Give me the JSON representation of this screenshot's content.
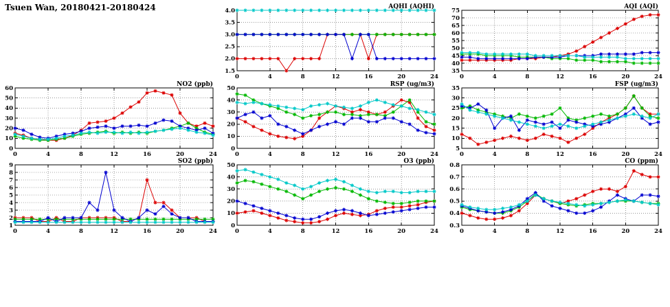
{
  "title": "Tsuen Wan, 20180421-20180424",
  "colors": {
    "red": "#dc0000",
    "blue": "#0000d0",
    "green": "#00b800",
    "cyan": "#00c8c8"
  },
  "chart_data": [
    {
      "key": "aqhi",
      "type": "line",
      "title": "AQHI (AQHI)",
      "xlim": [
        0,
        24
      ],
      "x_step": 1,
      "xticks": [
        0,
        4,
        8,
        12,
        16,
        20,
        24
      ],
      "ylim": [
        1.5,
        4.0
      ],
      "yticks": [
        1.5,
        2.0,
        2.5,
        3.0,
        3.5,
        4.0
      ],
      "ydec": 1,
      "series": [
        {
          "color": "red",
          "values": [
            2,
            2,
            2,
            2,
            2,
            2,
            1.5,
            2,
            2,
            2,
            2,
            3,
            3,
            3,
            3,
            3,
            2,
            3,
            3,
            3,
            3,
            3,
            3,
            3,
            3
          ]
        },
        {
          "color": "green",
          "values": [
            3,
            3,
            3,
            3,
            3,
            3,
            3,
            3,
            3,
            3,
            3,
            3,
            3,
            3,
            3,
            3,
            3,
            3,
            3,
            3,
            3,
            3,
            3,
            3,
            3
          ]
        },
        {
          "color": "blue",
          "values": [
            3,
            3,
            3,
            3,
            3,
            3,
            3,
            3,
            3,
            3,
            3,
            3,
            3,
            3,
            2,
            3,
            3,
            2,
            2,
            2,
            2,
            2,
            2,
            2,
            2
          ]
        },
        {
          "color": "cyan",
          "values": [
            4,
            4,
            4,
            4,
            4,
            4,
            4,
            4,
            4,
            4,
            4,
            4,
            4,
            4,
            4,
            4,
            4,
            4,
            4,
            4,
            4,
            4,
            4,
            4,
            4
          ]
        }
      ]
    },
    {
      "key": "aqi",
      "type": "line",
      "title": "AQI (AQI)",
      "xlim": [
        0,
        24
      ],
      "x_step": 1,
      "xticks": [
        0,
        4,
        8,
        12,
        16,
        20,
        24
      ],
      "ylim": [
        35,
        75
      ],
      "yticks": [
        35,
        40,
        45,
        50,
        55,
        60,
        65,
        70,
        75
      ],
      "ydec": 0,
      "series": [
        {
          "color": "red",
          "values": [
            42,
            42,
            42,
            42,
            42,
            42,
            42,
            43,
            43,
            43,
            44,
            44,
            45,
            46,
            48,
            51,
            54,
            57,
            60,
            63,
            66,
            69,
            71,
            72,
            72
          ]
        },
        {
          "color": "green",
          "values": [
            46,
            46,
            46,
            45,
            45,
            45,
            45,
            44,
            44,
            44,
            44,
            43,
            43,
            43,
            42,
            42,
            42,
            41,
            41,
            41,
            41,
            40,
            40,
            40,
            40
          ]
        },
        {
          "color": "blue",
          "values": [
            44,
            44,
            43,
            43,
            43,
            43,
            43,
            43,
            43,
            44,
            44,
            44,
            44,
            45,
            45,
            45,
            45,
            46,
            46,
            46,
            46,
            46,
            47,
            47,
            47
          ]
        },
        {
          "color": "cyan",
          "values": [
            47,
            47,
            47,
            46,
            46,
            46,
            46,
            46,
            46,
            45,
            45,
            45,
            45,
            45,
            45,
            44,
            44,
            44,
            44,
            44,
            43,
            43,
            43,
            43,
            43
          ]
        }
      ]
    },
    {
      "key": "no2",
      "type": "line",
      "title": "NO2 (ppb)",
      "xlim": [
        0,
        24
      ],
      "x_step": 1,
      "xticks": [
        0,
        4,
        8,
        12,
        16,
        20,
        24
      ],
      "ylim": [
        0,
        60
      ],
      "yticks": [
        0,
        10,
        20,
        30,
        40,
        50,
        60
      ],
      "ydec": 0,
      "series": [
        {
          "color": "red",
          "values": [
            15,
            13,
            10,
            9,
            8,
            8,
            10,
            13,
            18,
            25,
            26,
            27,
            30,
            35,
            41,
            46,
            55,
            57,
            55,
            53,
            35,
            25,
            22,
            25,
            22
          ]
        },
        {
          "color": "green",
          "values": [
            12,
            10,
            9,
            8,
            8,
            9,
            10,
            12,
            14,
            15,
            16,
            17,
            15,
            16,
            15,
            16,
            15,
            17,
            18,
            20,
            22,
            25,
            20,
            16,
            14
          ]
        },
        {
          "color": "blue",
          "values": [
            20,
            18,
            14,
            11,
            10,
            12,
            14,
            15,
            17,
            20,
            21,
            22,
            20,
            22,
            22,
            23,
            22,
            25,
            28,
            27,
            22,
            20,
            18,
            20,
            15
          ]
        },
        {
          "color": "cyan",
          "values": [
            14,
            12,
            10,
            9,
            9,
            10,
            12,
            13,
            15,
            16,
            15,
            16,
            16,
            15,
            16,
            15,
            16,
            17,
            18,
            19,
            20,
            18,
            16,
            15,
            13
          ]
        }
      ]
    },
    {
      "key": "rsp",
      "type": "line",
      "title": "RSP (ug/m3)",
      "xlim": [
        0,
        24
      ],
      "x_step": 1,
      "xticks": [
        0,
        4,
        8,
        12,
        16,
        20,
        24
      ],
      "ylim": [
        0,
        50
      ],
      "yticks": [
        0,
        10,
        20,
        30,
        40,
        50
      ],
      "ydec": 0,
      "series": [
        {
          "color": "red",
          "values": [
            25,
            22,
            18,
            15,
            12,
            10,
            9,
            8,
            10,
            15,
            25,
            30,
            35,
            33,
            30,
            32,
            30,
            28,
            30,
            35,
            40,
            38,
            25,
            18,
            15
          ]
        },
        {
          "color": "green",
          "values": [
            45,
            44,
            40,
            37,
            35,
            33,
            30,
            28,
            25,
            27,
            28,
            30,
            30,
            28,
            28,
            27,
            28,
            28,
            27,
            30,
            35,
            40,
            30,
            22,
            20
          ]
        },
        {
          "color": "blue",
          "values": [
            25,
            28,
            30,
            25,
            27,
            20,
            18,
            15,
            12,
            15,
            18,
            20,
            22,
            20,
            25,
            25,
            22,
            22,
            25,
            25,
            22,
            20,
            15,
            13,
            12
          ]
        },
        {
          "color": "cyan",
          "values": [
            38,
            37,
            38,
            37,
            36,
            35,
            34,
            33,
            32,
            35,
            36,
            37,
            35,
            34,
            33,
            35,
            38,
            40,
            38,
            36,
            35,
            33,
            32,
            30,
            28
          ]
        }
      ]
    },
    {
      "key": "fsp",
      "type": "line",
      "title": "FSP (ug/m3)",
      "xlim": [
        0,
        24
      ],
      "x_step": 1,
      "xticks": [
        0,
        4,
        8,
        12,
        16,
        20,
        24
      ],
      "ylim": [
        5,
        35
      ],
      "yticks": [
        5,
        10,
        15,
        20,
        25,
        30,
        35
      ],
      "ydec": 0,
      "series": [
        {
          "color": "red",
          "values": [
            12,
            10,
            7,
            8,
            9,
            10,
            11,
            10,
            9,
            10,
            12,
            11,
            10,
            8,
            10,
            12,
            15,
            18,
            20,
            22,
            25,
            31,
            25,
            22,
            22
          ]
        },
        {
          "color": "green",
          "values": [
            25,
            26,
            24,
            23,
            22,
            21,
            20,
            22,
            21,
            20,
            21,
            22,
            25,
            20,
            19,
            20,
            21,
            22,
            21,
            22,
            25,
            31,
            25,
            21,
            20
          ]
        },
        {
          "color": "blue",
          "values": [
            26,
            25,
            27,
            24,
            15,
            20,
            21,
            14,
            19,
            18,
            17,
            18,
            15,
            19,
            18,
            17,
            16,
            17,
            18,
            20,
            22,
            25,
            20,
            17,
            18
          ]
        },
        {
          "color": "cyan",
          "values": [
            27,
            24,
            23,
            22,
            21,
            20,
            19,
            18,
            17,
            16,
            15,
            16,
            17,
            16,
            15,
            16,
            17,
            18,
            19,
            20,
            21,
            22,
            21,
            20,
            22
          ]
        }
      ]
    },
    {
      "key": "so2",
      "type": "line",
      "title": "SO2 (ppb)",
      "xlim": [
        0,
        24
      ],
      "x_step": 1,
      "xticks": [
        0,
        4,
        8,
        12,
        16,
        20,
        24
      ],
      "ylim": [
        1,
        9
      ],
      "yticks": [
        1,
        2,
        3,
        4,
        5,
        6,
        7,
        8,
        9
      ],
      "ydec": 0,
      "series": [
        {
          "color": "red",
          "values": [
            2,
            2,
            2,
            1.5,
            1.5,
            2,
            1.5,
            1.5,
            2,
            2,
            2,
            2,
            2,
            1.5,
            1.5,
            2,
            7,
            4,
            4,
            3,
            2,
            2,
            2,
            1.5,
            1.5
          ]
        },
        {
          "color": "green",
          "values": [
            1.8,
            1.8,
            1.8,
            1.8,
            1.8,
            1.8,
            1.8,
            1.8,
            1.8,
            1.8,
            1.8,
            1.8,
            1.8,
            1.8,
            1.8,
            1.8,
            1.8,
            1.8,
            1.8,
            1.8,
            1.8,
            1.8,
            1.8,
            1.8,
            1.8
          ]
        },
        {
          "color": "blue",
          "values": [
            1.5,
            1.5,
            1.5,
            1.5,
            2,
            1.5,
            2,
            2,
            2,
            4,
            3,
            8,
            3,
            2,
            1.5,
            2,
            3,
            2.5,
            3.5,
            2.5,
            2,
            2,
            1.5,
            1.5,
            1.5
          ]
        },
        {
          "color": "cyan",
          "values": [
            1.4,
            1.4,
            1.4,
            1.4,
            1.4,
            1.4,
            1.4,
            1.4,
            1.4,
            1.4,
            1.4,
            1.4,
            1.4,
            1.4,
            1.4,
            1.4,
            1.4,
            1.4,
            1.4,
            1.4,
            1.4,
            1.4,
            1.4,
            1.4,
            1.4
          ]
        }
      ]
    },
    {
      "key": "o3",
      "type": "line",
      "title": "O3 (ppb)",
      "xlim": [
        0,
        24
      ],
      "x_step": 1,
      "xticks": [
        0,
        4,
        8,
        12,
        16,
        20,
        24
      ],
      "ylim": [
        0,
        50
      ],
      "yticks": [
        0,
        10,
        20,
        30,
        40,
        50
      ],
      "ydec": 0,
      "series": [
        {
          "color": "red",
          "values": [
            10,
            11,
            12,
            10,
            8,
            6,
            4,
            3,
            2,
            2,
            3,
            5,
            8,
            10,
            9,
            8,
            9,
            12,
            14,
            15,
            15,
            16,
            17,
            19,
            20
          ]
        },
        {
          "color": "green",
          "values": [
            35,
            37,
            36,
            34,
            32,
            30,
            28,
            25,
            22,
            25,
            28,
            30,
            31,
            30,
            28,
            25,
            22,
            20,
            19,
            18,
            18,
            19,
            20,
            20,
            20
          ]
        },
        {
          "color": "blue",
          "values": [
            20,
            18,
            16,
            14,
            12,
            10,
            8,
            6,
            5,
            5,
            7,
            10,
            12,
            13,
            12,
            10,
            8,
            9,
            10,
            11,
            12,
            13,
            14,
            15,
            15
          ]
        },
        {
          "color": "cyan",
          "values": [
            45,
            46,
            44,
            42,
            40,
            38,
            35,
            33,
            30,
            32,
            35,
            37,
            38,
            36,
            33,
            30,
            28,
            27,
            28,
            28,
            27,
            27,
            28,
            28,
            28
          ]
        }
      ]
    },
    {
      "key": "co",
      "type": "line",
      "title": "CO (ppm)",
      "xlim": [
        0,
        24
      ],
      "x_step": 1,
      "xticks": [
        0,
        4,
        8,
        12,
        16,
        20,
        24
      ],
      "ylim": [
        0.3,
        0.8
      ],
      "yticks": [
        0.3,
        0.4,
        0.5,
        0.6,
        0.7,
        0.8
      ],
      "ydec": 1,
      "series": [
        {
          "color": "red",
          "values": [
            0.4,
            0.38,
            0.36,
            0.35,
            0.35,
            0.36,
            0.38,
            0.42,
            0.48,
            0.55,
            0.52,
            0.5,
            0.48,
            0.5,
            0.52,
            0.55,
            0.58,
            0.6,
            0.6,
            0.58,
            0.62,
            0.75,
            0.72,
            0.7,
            0.7
          ]
        },
        {
          "color": "green",
          "values": [
            0.45,
            0.43,
            0.42,
            0.41,
            0.4,
            0.4,
            0.42,
            0.45,
            0.5,
            0.56,
            0.52,
            0.5,
            0.48,
            0.47,
            0.46,
            0.47,
            0.48,
            0.48,
            0.49,
            0.5,
            0.5,
            0.5,
            0.49,
            0.48,
            0.48
          ]
        },
        {
          "color": "blue",
          "values": [
            0.46,
            0.44,
            0.42,
            0.41,
            0.4,
            0.41,
            0.43,
            0.46,
            0.52,
            0.57,
            0.5,
            0.46,
            0.44,
            0.42,
            0.4,
            0.4,
            0.42,
            0.45,
            0.5,
            0.55,
            0.52,
            0.5,
            0.55,
            0.55,
            0.54
          ]
        },
        {
          "color": "cyan",
          "values": [
            0.47,
            0.45,
            0.44,
            0.43,
            0.43,
            0.44,
            0.45,
            0.47,
            0.5,
            0.55,
            0.52,
            0.5,
            0.49,
            0.48,
            0.47,
            0.46,
            0.47,
            0.48,
            0.49,
            0.5,
            0.51,
            0.5,
            0.49,
            0.48,
            0.47
          ]
        }
      ]
    }
  ]
}
